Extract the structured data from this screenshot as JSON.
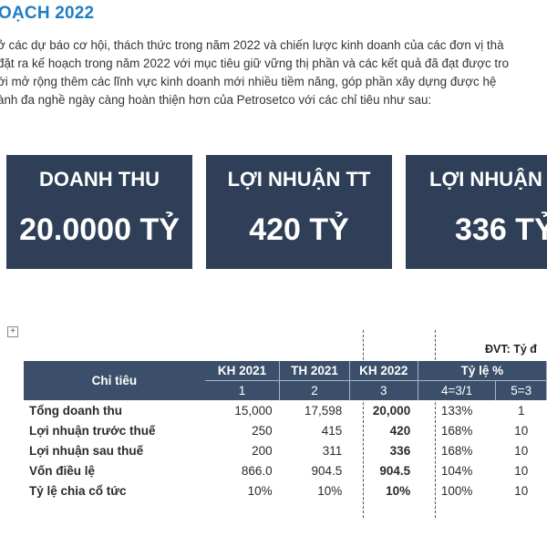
{
  "heading": "OẠCH 2022",
  "paragraph": [
    "ở các dự báo cơ hội, thách thức trong năm 2022 và chiến lược kinh doanh của các đơn vị thà",
    "đặt ra kế hoạch trong năm 2022 với mục tiêu giữ vững thị phần và các kết quả đã đạt được tro",
    "ới mở rộng thêm các lĩnh vực kinh doanh mới nhiều tiềm năng, góp phần xây dựng được hệ",
    "ành đa nghề ngày càng hoàn thiện hơn của Petrosetco với các chỉ tiêu như sau:"
  ],
  "cards": [
    {
      "label": "DOANH THU",
      "value": "20.0000 TỶ"
    },
    {
      "label": "LỢI NHUẬN TT",
      "value": "420 TỶ"
    },
    {
      "label": "LỢI NHUẬN S",
      "value": "336 TỶ"
    }
  ],
  "colors": {
    "heading": "#1d7fc2",
    "card_bg": "#2e3f57",
    "table_header": "#3b4f6b"
  },
  "table": {
    "unit": "ĐVT: Tỷ đ",
    "table_icon": "move-handle-icon",
    "header_label": "Chỉ tiêu",
    "columns": [
      "KH 2021",
      "TH 2021",
      "KH 2022",
      "Tỷ lệ %"
    ],
    "subcolumns": [
      "1",
      "2",
      "3",
      "4=3/1",
      "5=3"
    ],
    "rows": [
      {
        "name": "Tổng doanh thu",
        "kh2021": "15,000",
        "th2021": "17,598",
        "kh2022": "20,000",
        "r1": "133%",
        "r2": "1"
      },
      {
        "name": "Lợi nhuận trước thuế",
        "kh2021": "250",
        "th2021": "415",
        "kh2022": "420",
        "r1": "168%",
        "r2": "10"
      },
      {
        "name": "Lợi nhuận sau thuế",
        "kh2021": "200",
        "th2021": "311",
        "kh2022": "336",
        "r1": "168%",
        "r2": "10"
      },
      {
        "name": "Vốn điều lệ",
        "kh2021": "866.0",
        "th2021": "904.5",
        "kh2022": "904.5",
        "r1": "104%",
        "r2": "10"
      },
      {
        "name": "Tỷ lệ chia cổ tức",
        "kh2021": "10%",
        "th2021": "10%",
        "kh2022": "10%",
        "r1": "100%",
        "r2": "10"
      }
    ]
  }
}
